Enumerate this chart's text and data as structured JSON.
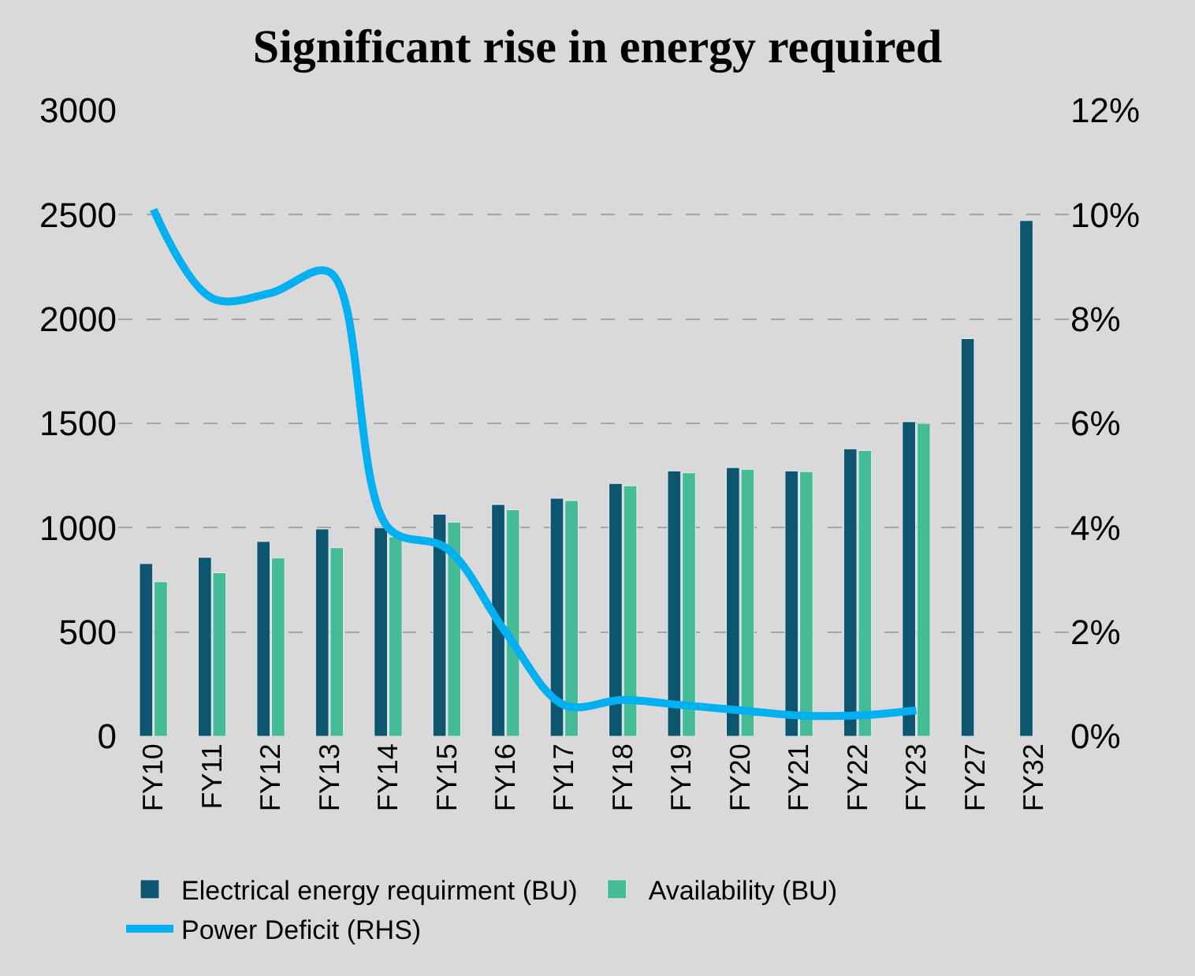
{
  "chart_data": {
    "type": "bar",
    "title": "Significant rise in energy required",
    "categories": [
      "FY10",
      "FY11",
      "FY12",
      "FY13",
      "FY14",
      "FY15",
      "FY16",
      "FY17",
      "FY18",
      "FY19",
      "FY20",
      "FY21",
      "FY22",
      "FY23",
      "FY27",
      "FY32"
    ],
    "series": [
      {
        "name": "Electrical energy requirment (BU)",
        "color": "#0e5670",
        "values": [
          828,
          858,
          934,
          994,
          1000,
          1065,
          1111,
          1141,
          1212,
          1272,
          1288,
          1272,
          1378,
          1508,
          1906,
          2472
        ]
      },
      {
        "name": "Availability (BU)",
        "color": "#45bb96",
        "values": [
          741,
          784,
          855,
          904,
          956,
          1027,
          1086,
          1130,
          1201,
          1263,
          1280,
          1269,
          1370,
          1500,
          null,
          null
        ]
      },
      {
        "name": "Power Deficit (RHS)",
        "color": "#00b0f0",
        "type": "line",
        "axis": "y2",
        "values": [
          10.1,
          8.4,
          8.5,
          8.9,
          4.0,
          3.6,
          2.0,
          0.6,
          0.7,
          0.6,
          0.5,
          0.4,
          0.4,
          0.5,
          null,
          null
        ]
      }
    ],
    "ylim": [
      0,
      3000
    ],
    "yticks": [
      0,
      500,
      1000,
      1500,
      2000,
      2500,
      3000
    ],
    "y2lim": [
      0,
      12
    ],
    "y2ticks": [
      {
        "value": 0,
        "label": "0%"
      },
      {
        "value": 2,
        "label": "2%"
      },
      {
        "value": 4,
        "label": "4%"
      },
      {
        "value": 6,
        "label": "6%"
      },
      {
        "value": 8,
        "label": "8%"
      },
      {
        "value": 10,
        "label": "10%"
      },
      {
        "value": 12,
        "label": "12%"
      }
    ],
    "grid": "y",
    "legend": "bottom",
    "marker": "none",
    "line_style": "solid"
  }
}
